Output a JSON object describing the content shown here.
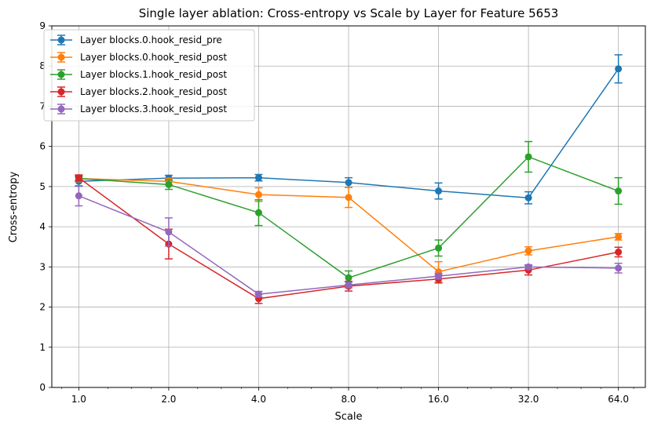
{
  "chart_data": {
    "type": "line",
    "title": "Single layer ablation: Cross-entropy vs Scale by Layer for Feature 5653",
    "xlabel": "Scale",
    "ylabel": "Cross-entropy",
    "x_scale": "log2",
    "x": [
      1.0,
      2.0,
      4.0,
      8.0,
      16.0,
      32.0,
      64.0
    ],
    "x_tick_labels": [
      "1.0",
      "2.0",
      "4.0",
      "8.0",
      "16.0",
      "32.0",
      "64.0"
    ],
    "ylim": [
      0,
      9
    ],
    "y_ticks": [
      0,
      1,
      2,
      3,
      4,
      5,
      6,
      7,
      8,
      9
    ],
    "y_tick_labels": [
      "0",
      "1",
      "2",
      "3",
      "4",
      "5",
      "6",
      "7",
      "8",
      "9"
    ],
    "grid": true,
    "legend_position": "top-left",
    "series": [
      {
        "name": "Layer blocks.0.hook_resid_pre",
        "color": "#1f77b4",
        "values": [
          5.13,
          5.21,
          5.22,
          5.1,
          4.89,
          4.72,
          7.93
        ],
        "errors": [
          0.12,
          0.07,
          0.08,
          0.12,
          0.2,
          0.15,
          0.35
        ]
      },
      {
        "name": "Layer blocks.0.hook_resid_post",
        "color": "#ff7f0e",
        "values": [
          5.2,
          5.13,
          4.8,
          4.73,
          2.88,
          3.4,
          3.75
        ],
        "errors": [
          0.08,
          0.08,
          0.17,
          0.25,
          0.25,
          0.1,
          0.08
        ]
      },
      {
        "name": "Layer blocks.1.hook_resid_post",
        "color": "#2ca02c",
        "values": [
          5.2,
          5.05,
          4.35,
          2.73,
          3.47,
          5.74,
          4.89
        ],
        "errors": [
          0.07,
          0.12,
          0.32,
          0.17,
          0.2,
          0.38,
          0.33
        ]
      },
      {
        "name": "Layer blocks.2.hook_resid_post",
        "color": "#d62728",
        "values": [
          5.22,
          3.57,
          2.21,
          2.52,
          2.7,
          2.92,
          3.37
        ],
        "errors": [
          0.07,
          0.37,
          0.12,
          0.12,
          0.1,
          0.12,
          0.12
        ]
      },
      {
        "name": "Layer blocks.3.hook_resid_post",
        "color": "#9467bd",
        "values": [
          4.77,
          3.87,
          2.32,
          2.55,
          2.77,
          3.0,
          2.97
        ],
        "errors": [
          0.25,
          0.35,
          0.07,
          0.07,
          0.07,
          0.05,
          0.12
        ]
      }
    ]
  }
}
